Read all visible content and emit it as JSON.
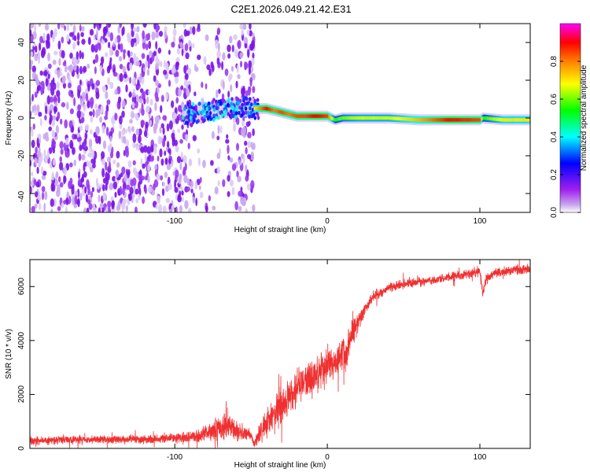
{
  "figure_title": "C2E1.2026.049.21.42.E31",
  "chart_data": [
    {
      "type": "heatmap",
      "title": "C2E1.2026.049.21.42.E31",
      "xlabel": "Height of straight line (km)",
      "ylabel": "Frequency (Hz)",
      "xlim": [
        -195,
        133
      ],
      "ylim": [
        -50,
        50
      ],
      "xticks": [
        -100,
        0,
        100
      ],
      "xtick_labels": [
        "-100",
        "0",
        "100"
      ],
      "yticks": [
        -40,
        -20,
        0,
        20,
        40
      ],
      "ytick_labels": [
        "-40",
        "-20",
        "0",
        "20",
        "40"
      ],
      "colorbar": {
        "label": "Normalized spectral amplitude",
        "range": [
          0,
          1
        ],
        "ticks": [
          0.0,
          0.2,
          0.4,
          0.6,
          0.8
        ],
        "tick_labels": [
          "0.0",
          "0.2",
          "0.4",
          "0.6",
          "0.8"
        ],
        "colormap": [
          "#ffffff",
          "#a020f0",
          "#0000ff",
          "#00ffff",
          "#00ff00",
          "#ffff00",
          "#ff8000",
          "#ff0000",
          "#ff00ff"
        ]
      },
      "noise_region_x": [
        -195,
        -48
      ],
      "ridge": {
        "x": [
          -95,
          -80,
          -65,
          -55,
          -48,
          -40,
          -35,
          -30,
          -25,
          -20,
          -15,
          -10,
          -5,
          0,
          5,
          10,
          20,
          40,
          60,
          80,
          100,
          102,
          115,
          133
        ],
        "freq": [
          2,
          3,
          5,
          6,
          5,
          5,
          4,
          3,
          2,
          1,
          1,
          1,
          1,
          1,
          -1,
          0,
          0,
          0,
          -1,
          -1,
          -1,
          0,
          -1,
          -1
        ],
        "amplitude": [
          0.25,
          0.3,
          0.3,
          0.3,
          0.7,
          0.9,
          0.8,
          0.85,
          0.8,
          0.85,
          0.85,
          0.9,
          0.9,
          0.85,
          0.55,
          0.6,
          0.65,
          0.65,
          0.75,
          0.9,
          0.85,
          0.55,
          0.7,
          0.7
        ]
      }
    },
    {
      "type": "line",
      "xlabel": "Height of straight line (km)",
      "ylabel": "SNR (10 * v/v)",
      "xlim": [
        -195,
        133
      ],
      "ylim": [
        0,
        7000
      ],
      "xticks": [
        -100,
        0,
        100
      ],
      "xtick_labels": [
        "-100",
        "0",
        "100"
      ],
      "yticks": [
        0,
        2000,
        4000,
        6000
      ],
      "ytick_labels": [
        "0",
        "2000",
        "4000",
        "6000"
      ],
      "series": [
        {
          "name": "SNR",
          "color": "#f03030",
          "x": [
            -195,
            -160,
            -130,
            -110,
            -100,
            -90,
            -80,
            -72,
            -66,
            -60,
            -55,
            -50,
            -48,
            -46,
            -44,
            -40,
            -35,
            -30,
            -25,
            -20,
            -15,
            -10,
            -5,
            0,
            5,
            10,
            12,
            15,
            20,
            25,
            30,
            40,
            50,
            60,
            70,
            80,
            90,
            100,
            102,
            104,
            110,
            120,
            133
          ],
          "y": [
            300,
            320,
            330,
            350,
            380,
            420,
            550,
            700,
            950,
            650,
            550,
            500,
            160,
            350,
            600,
            900,
            1200,
            1500,
            1900,
            2200,
            2500,
            2700,
            2900,
            3050,
            3200,
            3600,
            3400,
            4100,
            4700,
            5200,
            5600,
            5950,
            6100,
            6150,
            6250,
            6350,
            6450,
            6550,
            5750,
            6300,
            6500,
            6600,
            6650
          ],
          "noise_amplitude": [
            200,
            200,
            200,
            220,
            240,
            300,
            420,
            600,
            750,
            500,
            350,
            300,
            150,
            350,
            500,
            700,
            900,
            1000,
            1050,
            1000,
            1000,
            1000,
            950,
            900,
            900,
            850,
            850,
            650,
            500,
            350,
            280,
            240,
            220,
            220,
            220,
            230,
            240,
            250,
            250,
            250,
            250,
            250,
            250
          ]
        }
      ]
    }
  ]
}
